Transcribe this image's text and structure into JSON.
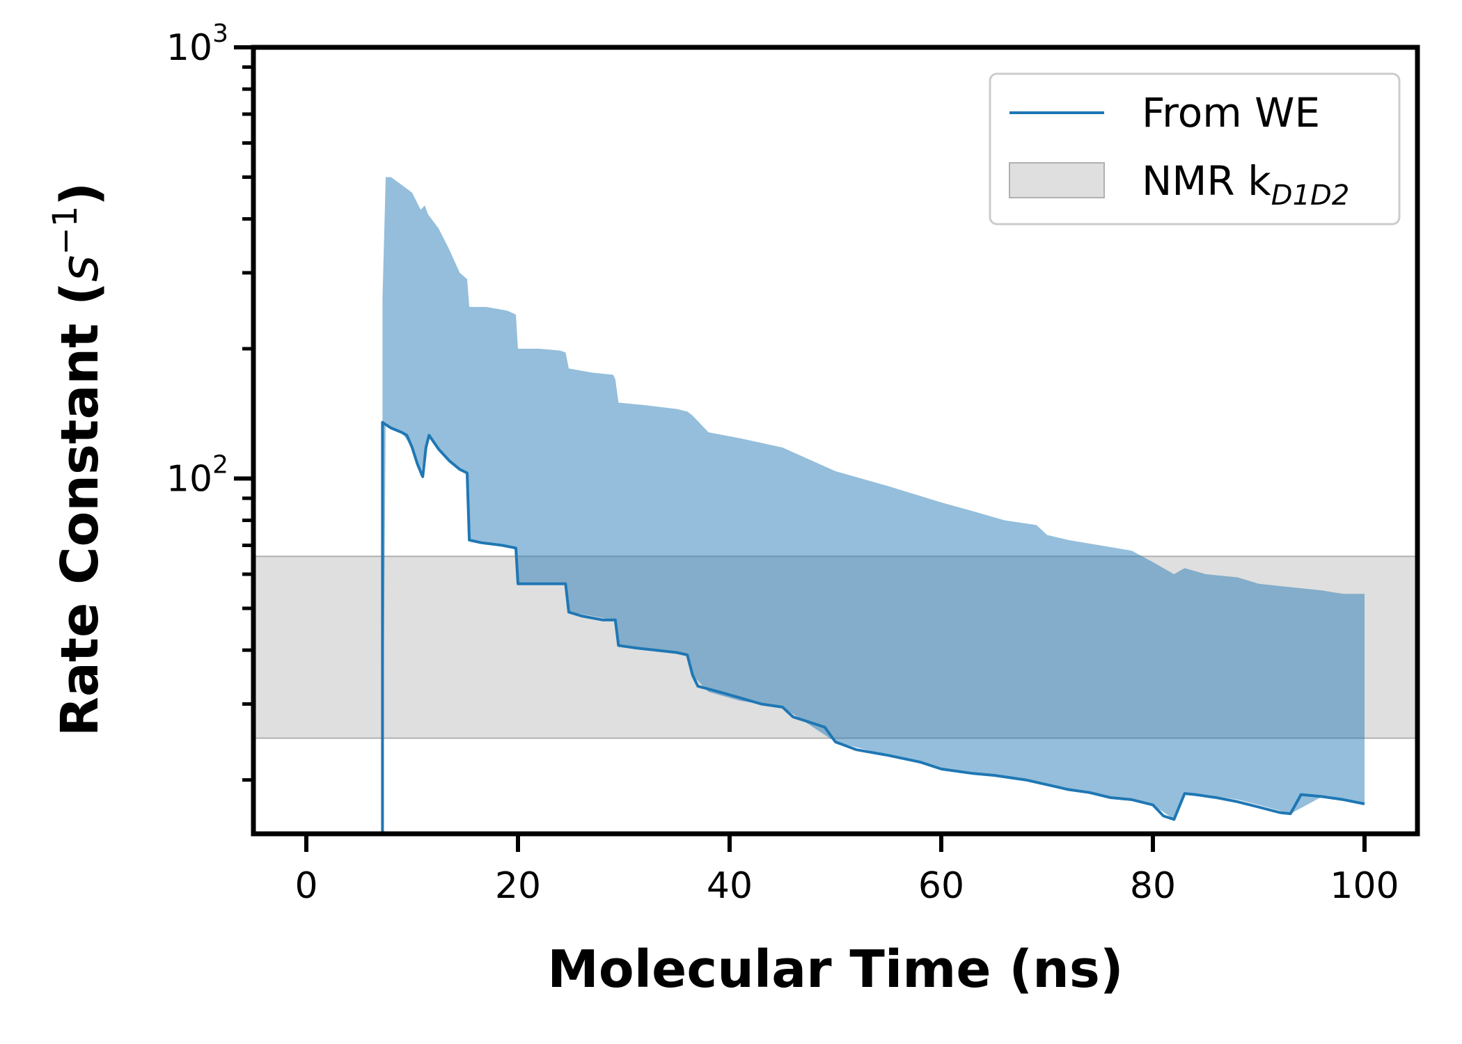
{
  "chart_data": {
    "type": "line",
    "title": "",
    "xlabel": "Molecular Time (ns)",
    "ylabel": {
      "main": "Rate Constant (",
      "unit_base": "s",
      "unit_exp": "−1",
      "close": ")"
    },
    "xlim": [
      -5,
      105
    ],
    "ylim": [
      15,
      1000
    ],
    "yscale": "log",
    "x_ticks": [
      0,
      20,
      40,
      60,
      80,
      100
    ],
    "y_ticks": [
      {
        "value": 100,
        "base": "10",
        "exp": "2"
      },
      {
        "value": 1000,
        "base": "10",
        "exp": "3"
      }
    ],
    "grid": false,
    "legend": {
      "position": "top-right",
      "entries": [
        {
          "label": "From WE",
          "kind": "line"
        },
        {
          "label_main": "NMR k",
          "label_sub": "D1D2",
          "kind": "patch"
        }
      ]
    },
    "colors": {
      "line": "#1f77b4",
      "ci_fill": "#1f77b4",
      "nmr_band": "#b0b0b0"
    },
    "nmr_band": {
      "ymin": 25,
      "ymax": 66
    },
    "series": [
      {
        "name": "From WE",
        "x": [
          7.2,
          7.2,
          8.0,
          9.0,
          9.5,
          10.0,
          10.5,
          11.0,
          11.3,
          11.6,
          12.5,
          13.5,
          14.5,
          15.2,
          15.4,
          16.5,
          18.5,
          19.8,
          20.0,
          21.5,
          23.5,
          24.5,
          24.8,
          26.0,
          28.0,
          29.2,
          29.5,
          31.0,
          33.0,
          35.0,
          36.0,
          36.5,
          37.0,
          39.0,
          41.0,
          43.0,
          45.0,
          46.0,
          47.0,
          49.0,
          50.0,
          52.0,
          55.0,
          58.0,
          60.0,
          63.0,
          65.0,
          68.0,
          70.0,
          72.0,
          74.0,
          76.0,
          78.0,
          80.0,
          81.0,
          82.0,
          83.0,
          84.0,
          86.0,
          88.0,
          90.0,
          92.0,
          93.0,
          94.0,
          96.0,
          98.0,
          100.0
        ],
        "y": [
          15,
          135,
          131,
          128,
          126,
          118,
          108,
          101,
          118,
          126,
          117,
          110,
          105,
          103,
          72,
          71,
          70,
          69,
          57,
          57,
          57,
          57,
          49,
          48,
          47,
          47,
          41,
          40.5,
          40,
          39.5,
          39,
          35,
          33,
          32,
          31,
          30,
          29.5,
          28,
          27.5,
          26.5,
          24.5,
          23.5,
          22.8,
          22,
          21.2,
          20.7,
          20.5,
          20,
          19.5,
          19,
          18.7,
          18.2,
          18,
          17.5,
          16.5,
          16.2,
          18.6,
          18.5,
          18.2,
          17.8,
          17.3,
          16.8,
          16.7,
          18.5,
          18.3,
          18,
          17.6
        ]
      },
      {
        "name": "",
        "x": [
          7.2,
          7.5,
          8.0,
          9.0,
          10.0,
          10.8,
          11.2,
          11.5,
          12.5,
          13.5,
          14.5,
          15.2,
          15.4,
          17.0,
          19.0,
          19.8,
          20.0,
          22.0,
          24.0,
          24.5,
          24.8,
          27.0,
          29.0,
          29.2,
          29.5,
          32.0,
          35.0,
          36.0,
          36.5,
          38.0,
          41.0,
          45.0,
          50.0,
          55.0,
          60.0,
          63.0,
          66.0,
          69.0,
          70.0,
          72.0,
          75.0,
          78.0,
          80.0,
          82.0,
          83.0,
          85.0,
          88.0,
          90.0,
          93.0,
          96.0,
          98.0,
          100.0
        ],
        "y_low": [
          15,
          135,
          131,
          128,
          118,
          101,
          118,
          126,
          117,
          110,
          105,
          103,
          72,
          71,
          70,
          69,
          57,
          57,
          57,
          57,
          49,
          48,
          47,
          47,
          41,
          40.5,
          39.5,
          39,
          35,
          32,
          30.5,
          29.5,
          24.5,
          22.8,
          21.2,
          20.7,
          20.2,
          19.7,
          19.5,
          19,
          18.5,
          18,
          17.5,
          16.2,
          18.6,
          18.5,
          18,
          17.5,
          16.7,
          18.3,
          18,
          17.6
        ],
        "y_high": [
          260,
          500,
          500,
          480,
          460,
          420,
          430,
          410,
          380,
          340,
          300,
          290,
          250,
          250,
          245,
          240,
          200,
          200,
          198,
          196,
          180,
          176,
          174,
          170,
          150,
          148,
          145,
          143,
          140,
          128,
          124,
          118,
          104,
          96,
          88,
          84,
          80,
          78,
          74,
          72,
          70,
          68,
          64,
          60,
          62,
          60,
          59,
          57,
          56,
          55,
          54,
          54
        ]
      }
    ]
  }
}
